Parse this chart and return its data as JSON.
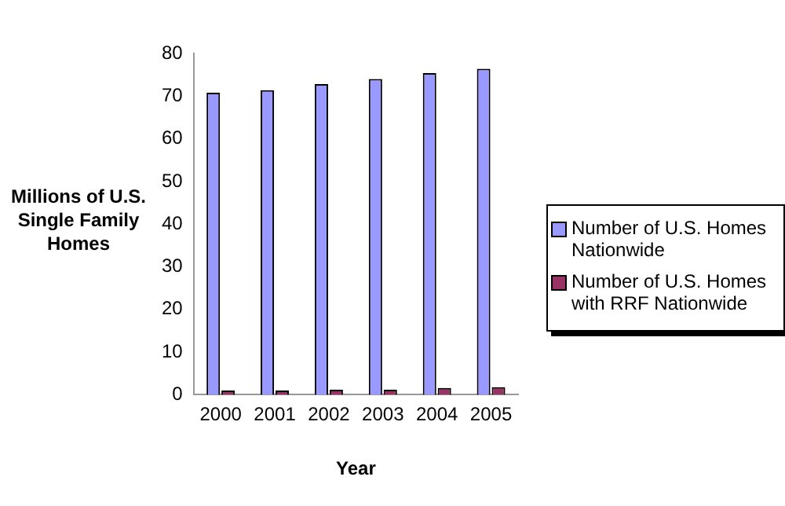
{
  "chart_data": {
    "type": "bar",
    "xlabel": "Year",
    "ylabel": "Millions of U.S. Single Family Homes",
    "categories": [
      "2000",
      "2001",
      "2002",
      "2003",
      "2004",
      "2005"
    ],
    "series": [
      {
        "name": "Number of U.S. Homes Nationwide",
        "color": "#9999ff",
        "values": [
          70.8,
          71.4,
          72.8,
          74,
          75.4,
          76.4
        ]
      },
      {
        "name": "Number of U.S. Homes with RRF Nationwide",
        "color": "#993366",
        "values": [
          1,
          1,
          1.2,
          1.2,
          1.6,
          1.8
        ]
      }
    ],
    "ylim": [
      0,
      80
    ],
    "yticks": [
      0,
      10,
      20,
      30,
      40,
      50,
      60,
      70,
      80
    ],
    "grid": false,
    "legend": "right"
  }
}
